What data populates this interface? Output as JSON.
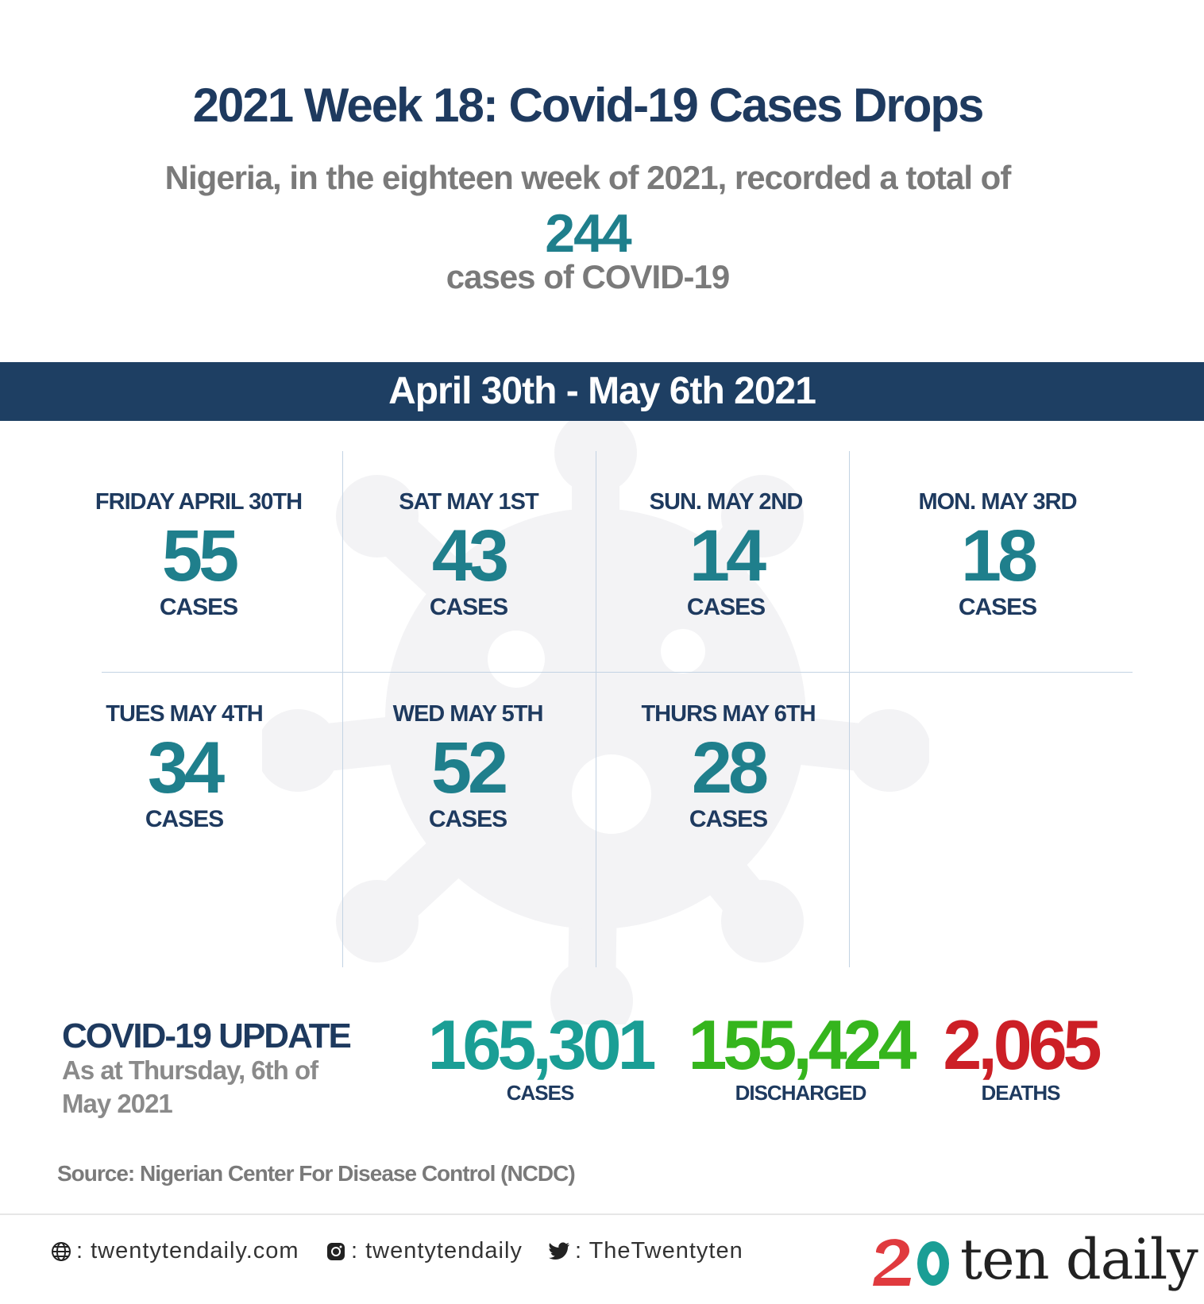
{
  "header": {
    "title": "2021 Week 18: Covid-19 Cases Drops",
    "intro_line1": "Nigeria, in the eighteen week of 2021, recorded a total of",
    "total": "244",
    "intro_line2": "cases of COVID-19"
  },
  "banner": {
    "date_range": "April 30th - May 6th 2021"
  },
  "days": [
    {
      "label": "FRIDAY APRIL 30TH",
      "value": "55",
      "unit": "CASES"
    },
    {
      "label": "SAT MAY 1ST",
      "value": "43",
      "unit": "CASES"
    },
    {
      "label": "SUN. MAY 2ND",
      "value": "14",
      "unit": "CASES"
    },
    {
      "label": "MON. MAY 3RD",
      "value": "18",
      "unit": "CASES"
    },
    {
      "label": "TUES MAY 4TH",
      "value": "34",
      "unit": "CASES"
    },
    {
      "label": "WED MAY 5TH",
      "value": "52",
      "unit": "CASES"
    },
    {
      "label": "THURS MAY 6TH",
      "value": "28",
      "unit": "CASES"
    }
  ],
  "update": {
    "title": "COVID-19 UPDATE",
    "subtitle": "As at Thursday, 6th of May 2021",
    "stats": [
      {
        "value": "165,301",
        "unit": "CASES",
        "color": "#1a9e95"
      },
      {
        "value": "155,424",
        "unit": "DISCHARGED",
        "color": "#35b51d"
      },
      {
        "value": "2,065",
        "unit": "DEATHS",
        "color": "#cc1f26"
      }
    ]
  },
  "source": "Source: Nigerian Center For Disease Control (NCDC)",
  "footer": {
    "website": ": twentytendaily.com",
    "instagram": ": twentytendaily",
    "twitter": ": TheTwentyten",
    "logo_text": "ten daily",
    "logo_icons": [
      "globe-icon",
      "instagram-icon",
      "twitter-icon"
    ]
  },
  "colors": {
    "navy": "#1e3a5f",
    "banner": "#1e3f63",
    "teal": "#1f7f8c",
    "gray_text": "#7a7a7a",
    "logo_red": "#e03a3e",
    "logo_teal": "#1a9e95"
  }
}
